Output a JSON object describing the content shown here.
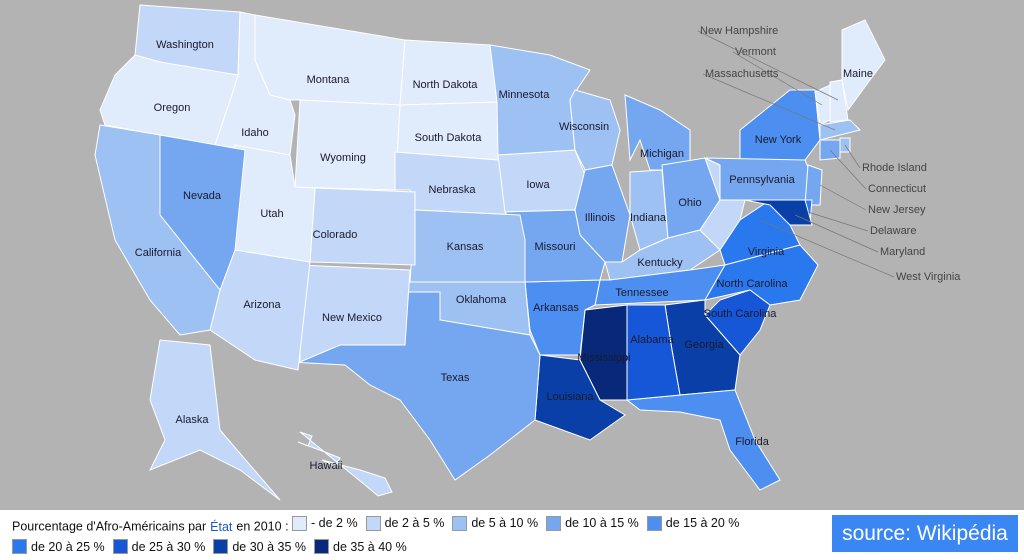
{
  "map": {
    "states": [
      {
        "name": "Washington",
        "color": "#c3d8f8"
      },
      {
        "name": "Oregon",
        "color": "#e0ebfc"
      },
      {
        "name": "Idaho",
        "color": "#e0ebfc"
      },
      {
        "name": "Montana",
        "color": "#e0ebfc"
      },
      {
        "name": "North Dakota",
        "color": "#e0ebfc"
      },
      {
        "name": "South Dakota",
        "color": "#e0ebfc"
      },
      {
        "name": "Wyoming",
        "color": "#e0ebfc"
      },
      {
        "name": "Nebraska",
        "color": "#c3d8f8"
      },
      {
        "name": "Iowa",
        "color": "#c3d8f8"
      },
      {
        "name": "Minnesota",
        "color": "#9dc1f3"
      },
      {
        "name": "Wisconsin",
        "color": "#9dc1f3"
      },
      {
        "name": "Michigan",
        "color": "#74a7ef"
      },
      {
        "name": "Illinois",
        "color": "#74a7ef"
      },
      {
        "name": "Indiana",
        "color": "#9dc1f3"
      },
      {
        "name": "Ohio",
        "color": "#74a7ef"
      },
      {
        "name": "Kentucky",
        "color": "#9dc1f3"
      },
      {
        "name": "Tennessee",
        "color": "#4d8ff0"
      },
      {
        "name": "West Virginia",
        "color": "#c3d8f8"
      },
      {
        "name": "Virginia",
        "color": "#2a78ee"
      },
      {
        "name": "North Carolina",
        "color": "#2a78ee"
      },
      {
        "name": "South Carolina",
        "color": "#1557d6"
      },
      {
        "name": "Georgia",
        "color": "#0a3fa8"
      },
      {
        "name": "Florida",
        "color": "#4d8ff0"
      },
      {
        "name": "Alabama",
        "color": "#1557d6"
      },
      {
        "name": "Mississippi",
        "color": "#08297a"
      },
      {
        "name": "Louisiana",
        "color": "#0a3fa8"
      },
      {
        "name": "Arkansas",
        "color": "#4d8ff0"
      },
      {
        "name": "Missouri",
        "color": "#74a7ef"
      },
      {
        "name": "Kansas",
        "color": "#9dc1f3"
      },
      {
        "name": "Oklahoma",
        "color": "#9dc1f3"
      },
      {
        "name": "Texas",
        "color": "#74a7ef"
      },
      {
        "name": "New Mexico",
        "color": "#c3d8f8"
      },
      {
        "name": "Colorado",
        "color": "#c3d8f8"
      },
      {
        "name": "Utah",
        "color": "#e0ebfc"
      },
      {
        "name": "Arizona",
        "color": "#c3d8f8"
      },
      {
        "name": "Nevada",
        "color": "#74a7ef"
      },
      {
        "name": "California",
        "color": "#9dc1f3"
      },
      {
        "name": "New York",
        "color": "#4d8ff0"
      },
      {
        "name": "Pennsylvania",
        "color": "#74a7ef"
      },
      {
        "name": "New Jersey",
        "color": "#74a7ef"
      },
      {
        "name": "Delaware",
        "color": "#2a78ee"
      },
      {
        "name": "Maryland",
        "color": "#0a3fa8"
      },
      {
        "name": "Vermont",
        "color": "#e0ebfc"
      },
      {
        "name": "New Hampshire",
        "color": "#e0ebfc"
      },
      {
        "name": "Maine",
        "color": "#e0ebfc"
      },
      {
        "name": "Massachusetts",
        "color": "#9dc1f3"
      },
      {
        "name": "Connecticut",
        "color": "#74a7ef"
      },
      {
        "name": "Rhode Island",
        "color": "#9dc1f3"
      },
      {
        "name": "Alaska",
        "color": "#c3d8f8"
      },
      {
        "name": "Hawaii",
        "color": "#c3d8f8"
      }
    ],
    "legend": {
      "title_before": "Pourcentage d'Afro-Américains par",
      "link": "État",
      "title_after": "en 2010 :",
      "items": [
        {
          "label": "- de 2 %",
          "color": "#e0ebfc"
        },
        {
          "label": "de 2 à 5 %",
          "color": "#c3d8f8"
        },
        {
          "label": "de 5 à 10 %",
          "color": "#9dc1f3"
        },
        {
          "label": "de 10 à 15 %",
          "color": "#74a7ef"
        },
        {
          "label": "de 15 à 20 %",
          "color": "#4d8ff0"
        },
        {
          "label": "de 20 à 25 %",
          "color": "#2a78ee"
        },
        {
          "label": "de 25 à 30 %",
          "color": "#1557d6"
        },
        {
          "label": "de 30 à 35 %",
          "color": "#0a3fa8"
        },
        {
          "label": "de 35 à 40 %",
          "color": "#08297a"
        }
      ]
    },
    "source": "source: Wikipédia"
  }
}
